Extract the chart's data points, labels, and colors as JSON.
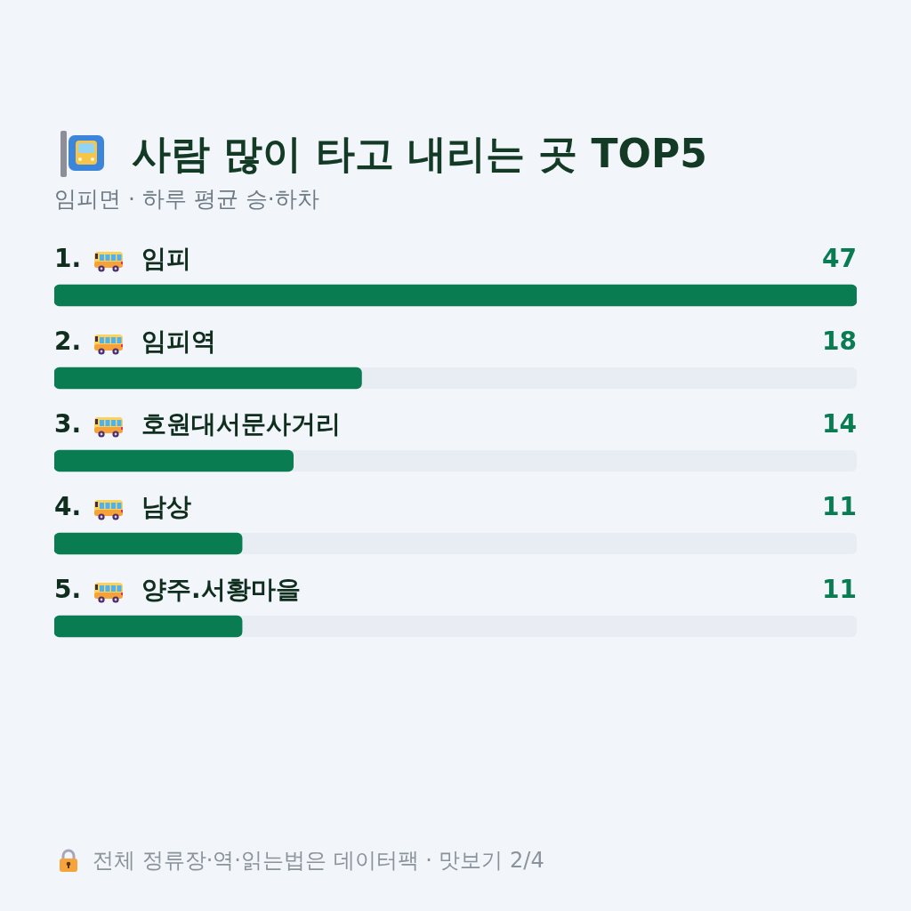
{
  "chart_data": {
    "type": "bar",
    "orientation": "horizontal",
    "title": "사람 많이 타고 내리는 곳 TOP5",
    "subtitle": "임피면 · 하루 평균 승·하차",
    "categories": [
      "1. 임피",
      "2. 임피역",
      "3. 호원대서문사거리",
      "4. 남상",
      "5. 양주.서황마을"
    ],
    "values": [
      47,
      18,
      14,
      11,
      11
    ],
    "color": "#0a7c52",
    "xlim": [
      0,
      47
    ],
    "data_labels": true,
    "tick_labels": "y",
    "annotations": [
      "전체 정류장·역·읽는법은 데이터팩 · 맛보기 2/4"
    ]
  }
}
